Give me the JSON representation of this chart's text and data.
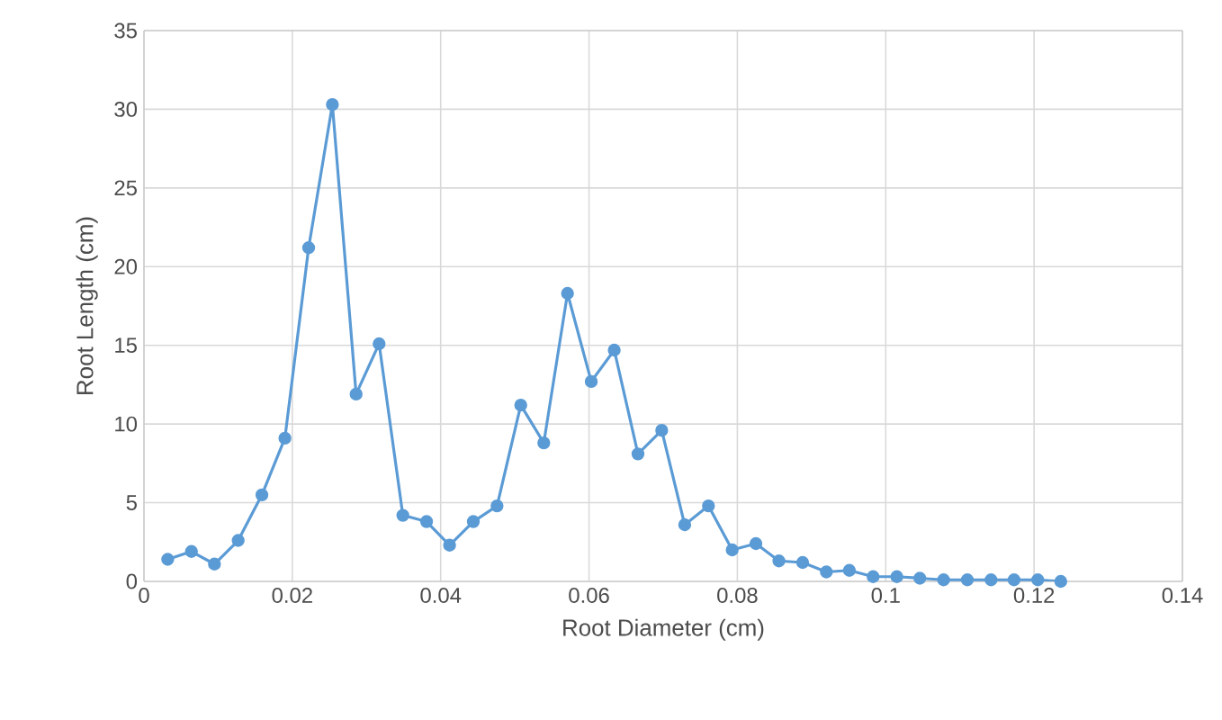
{
  "chart_data": {
    "type": "line",
    "xlabel": "Root Diameter (cm)",
    "ylabel": "Root Length (cm)",
    "x": [
      0.0032,
      0.0064,
      0.0095,
      0.0127,
      0.0159,
      0.019,
      0.0222,
      0.0254,
      0.0286,
      0.0317,
      0.0349,
      0.0381,
      0.0412,
      0.0444,
      0.0476,
      0.0508,
      0.0539,
      0.0571,
      0.0603,
      0.0634,
      0.0666,
      0.0698,
      0.0729,
      0.0761,
      0.0793,
      0.0825,
      0.0856,
      0.0888,
      0.092,
      0.0951,
      0.0983,
      0.1015,
      0.1046,
      0.1078,
      0.111,
      0.1142,
      0.1173,
      0.1205,
      0.1236
    ],
    "series": [
      {
        "color": "#5b9bd5",
        "values": [
          1.4,
          1.9,
          1.1,
          2.6,
          5.5,
          9.1,
          21.2,
          30.3,
          11.9,
          15.1,
          4.2,
          3.8,
          2.3,
          3.8,
          4.8,
          11.2,
          8.8,
          18.3,
          12.7,
          14.7,
          8.1,
          9.6,
          3.6,
          4.8,
          2.0,
          2.4,
          1.3,
          1.2,
          0.6,
          0.7,
          0.3,
          0.3,
          0.2,
          0.1,
          0.1,
          0.1,
          0.1,
          0.1,
          0.0
        ]
      }
    ],
    "xlim": [
      0,
      0.14
    ],
    "xticks": [
      0,
      0.02,
      0.04,
      0.06,
      0.08,
      0.1,
      0.12,
      0.14
    ],
    "ylim": [
      0,
      35
    ],
    "yticks": [
      0,
      5,
      10,
      15,
      20,
      25,
      30,
      35
    ],
    "grid": true,
    "marker": "circle",
    "line_style": "solid"
  }
}
